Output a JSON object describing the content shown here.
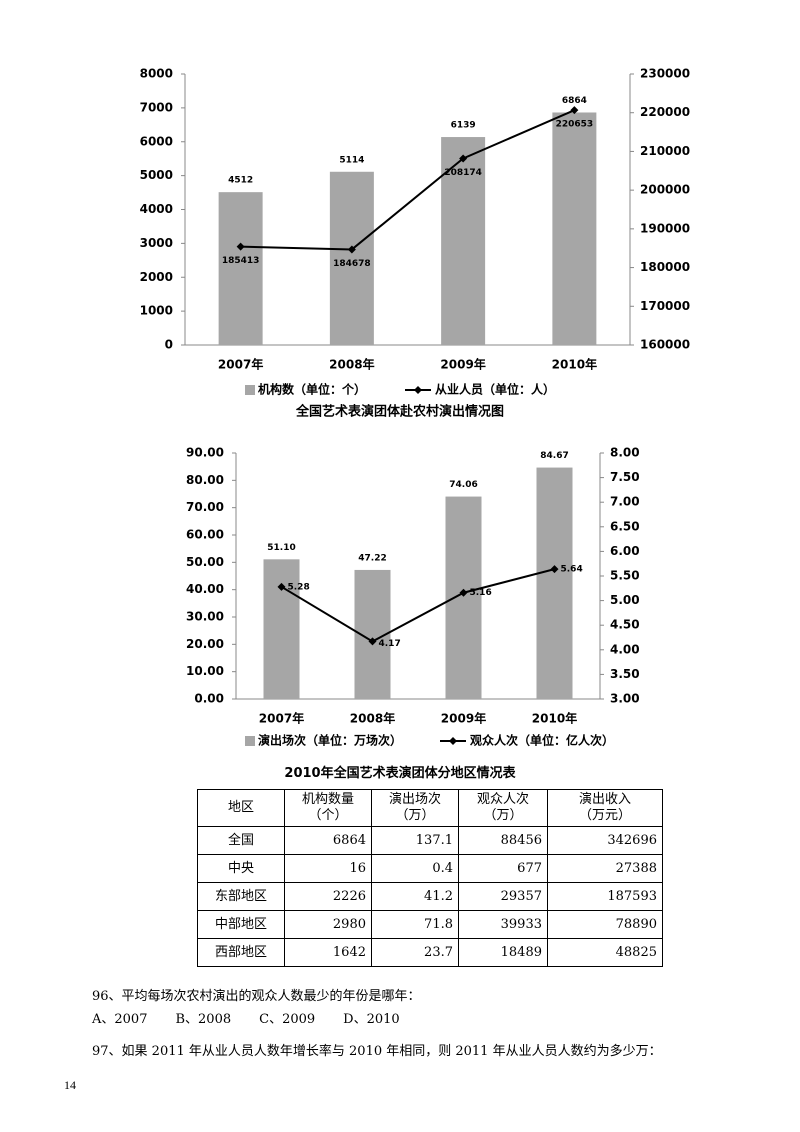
{
  "chart_data": [
    {
      "type": "bar-line",
      "categories": [
        "2007年",
        "2008年",
        "2009年",
        "2010年"
      ],
      "series": [
        {
          "name": "机构数（单位：个）",
          "color": "#a6a6a6",
          "values": [
            4512,
            5114,
            6139,
            6864
          ]
        },
        {
          "name": "从业人员（单位：人）",
          "color": "#000000",
          "axis": "y2",
          "values": [
            185413,
            184678,
            208174,
            220653
          ]
        }
      ],
      "ylim": [
        0,
        8000
      ],
      "yticks": [
        0,
        1000,
        2000,
        3000,
        4000,
        5000,
        6000,
        7000,
        8000
      ],
      "y2lim": [
        160000,
        230000
      ],
      "y2ticks": [
        160000,
        170000,
        180000,
        190000,
        200000,
        210000,
        220000,
        230000
      ]
    },
    {
      "type": "bar-line",
      "title": "全国艺术表演团体赴农村演出情况图",
      "categories": [
        "2007年",
        "2008年",
        "2009年",
        "2010年"
      ],
      "series": [
        {
          "name": "演出场次（单位：万场次）",
          "color": "#a6a6a6",
          "values": [
            51.1,
            47.22,
            74.06,
            84.67
          ],
          "value_labels": [
            "51.10",
            "47.22",
            "74.06",
            "84.67"
          ]
        },
        {
          "name": "观众人次（单位：亿人次）",
          "color": "#000000",
          "axis": "y2",
          "values": [
            5.28,
            4.17,
            5.16,
            5.64
          ]
        }
      ],
      "ylim": [
        0,
        90
      ],
      "yticks": [
        {
          "value": 0,
          "label": "0.00"
        },
        {
          "value": 10,
          "label": "10.00"
        },
        {
          "value": 20,
          "label": "20.00"
        },
        {
          "value": 30,
          "label": "30.00"
        },
        {
          "value": 40,
          "label": "40.00"
        },
        {
          "value": 50,
          "label": "50.00"
        },
        {
          "value": 60,
          "label": "60.00"
        },
        {
          "value": 70,
          "label": "70.00"
        },
        {
          "value": 80,
          "label": "80.00"
        },
        {
          "value": 90,
          "label": "90.00"
        }
      ],
      "y2lim": [
        3,
        8
      ],
      "y2ticks": [
        {
          "value": 3,
          "label": "3.00"
        },
        {
          "value": 3.5,
          "label": "3.50"
        },
        {
          "value": 4,
          "label": "4.00"
        },
        {
          "value": 4.5,
          "label": "4.50"
        },
        {
          "value": 5,
          "label": "5.00"
        },
        {
          "value": 5.5,
          "label": "5.50"
        },
        {
          "value": 6,
          "label": "6.00"
        },
        {
          "value": 6.5,
          "label": "6.50"
        },
        {
          "value": 7,
          "label": "7.00"
        },
        {
          "value": 7.5,
          "label": "7.50"
        },
        {
          "value": 8,
          "label": "8.00"
        }
      ]
    }
  ],
  "table": {
    "title": "2010年全国艺术表演团体分地区情况表",
    "header": [
      "地区",
      "机构数量\n（个）",
      "演出场次\n（万）",
      "观众人次\n（万）",
      "演出收入\n（万元）"
    ],
    "rows": [
      [
        "全国",
        "6864",
        "137.1",
        "88456",
        "342696"
      ],
      [
        "中央",
        "16",
        "0.4",
        "677",
        "27388"
      ],
      [
        "东部地区",
        "2226",
        "41.2",
        "29357",
        "187593"
      ],
      [
        "中部地区",
        "2980",
        "71.8",
        "39933",
        "78890"
      ],
      [
        "西部地区",
        "1642",
        "23.7",
        "18489",
        "48825"
      ]
    ]
  },
  "questions": [
    {
      "text": "96、平均每场次农村演出的观众人数最少的年份是哪年：",
      "options": [
        "A、2007",
        "B、2008",
        "C、2009",
        "D、2010"
      ]
    },
    {
      "text": "97、如果 2011 年从业人员人数年增长率与 2010 年相同，则 2011 年从业人员人数约为多少万："
    }
  ],
  "page_number": "14"
}
